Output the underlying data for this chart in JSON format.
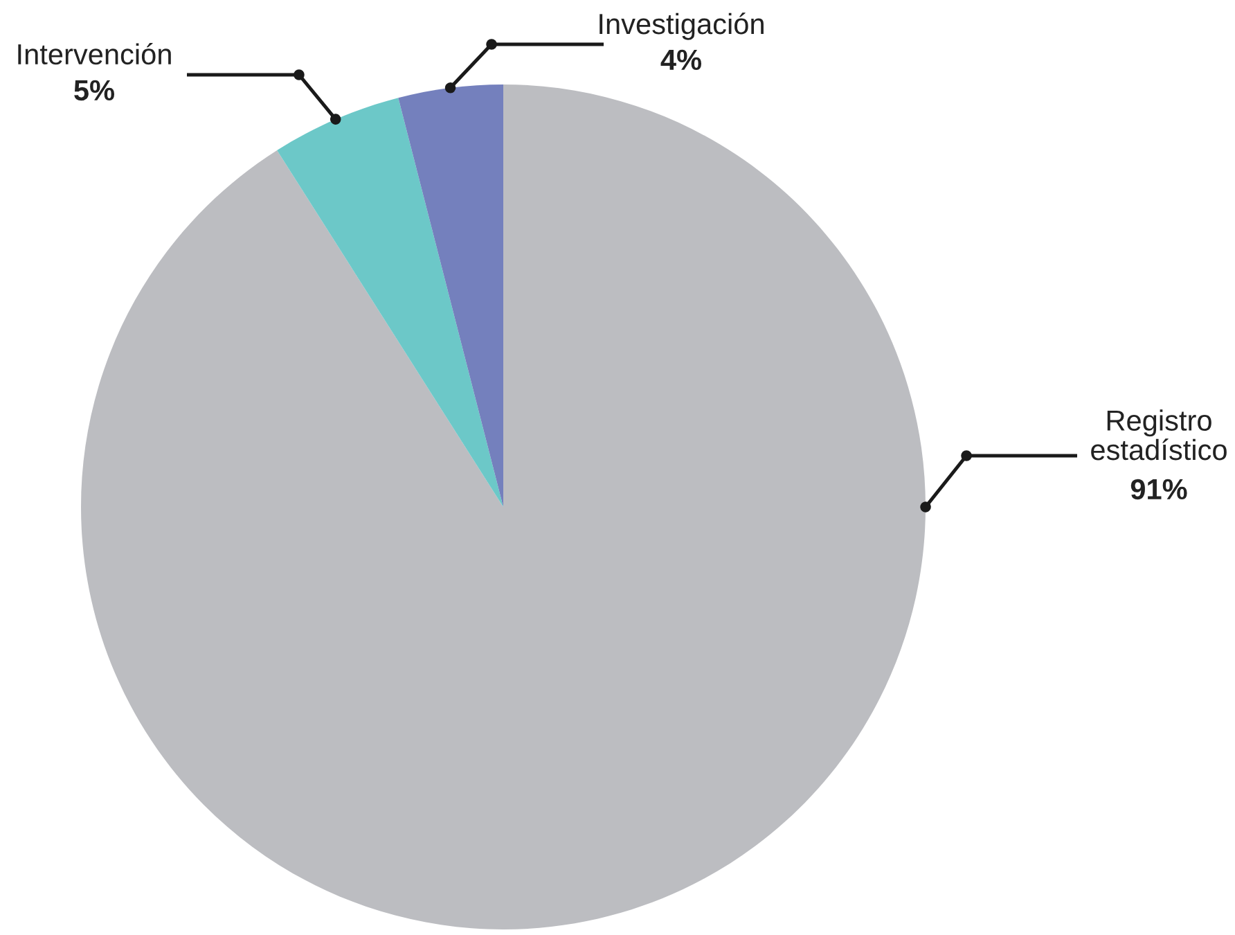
{
  "chart_data": {
    "type": "pie",
    "categories": [
      "Registro estadístico",
      "Intervención",
      "Investigación"
    ],
    "values": [
      91,
      5,
      4
    ],
    "colors": [
      "#bcbdc1",
      "#6cc8c8",
      "#7480bd"
    ],
    "value_labels": [
      "91%",
      "5%",
      "4%"
    ]
  }
}
